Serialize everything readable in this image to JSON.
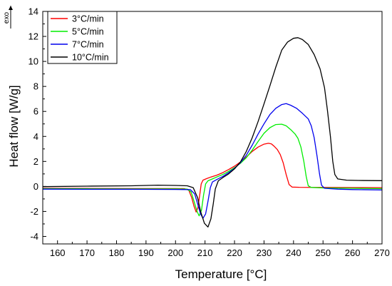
{
  "chart_data": {
    "type": "line",
    "xlabel": "Temperature [°C]",
    "ylabel": "Heat flow [W/g]",
    "exo_label": "exo",
    "xlim": [
      155,
      270
    ],
    "ylim": [
      -4.6,
      14
    ],
    "x_ticks": [
      160,
      170,
      180,
      190,
      200,
      210,
      220,
      230,
      240,
      250,
      260,
      270
    ],
    "y_ticks": [
      -4,
      -2,
      0,
      2,
      4,
      6,
      8,
      10,
      12,
      14
    ],
    "grid": false,
    "legend_position": "top-left",
    "series": [
      {
        "name": "3°C/min",
        "color": "#ff0000",
        "points": [
          [
            155,
            -0.15
          ],
          [
            170,
            -0.16
          ],
          [
            185,
            -0.17
          ],
          [
            200,
            -0.17
          ],
          [
            203,
            -0.18
          ],
          [
            204.5,
            -0.3
          ],
          [
            205.5,
            -0.9
          ],
          [
            206.3,
            -1.6
          ],
          [
            207,
            -2.05
          ],
          [
            207.6,
            -1.7
          ],
          [
            208.2,
            -0.7
          ],
          [
            208.7,
            0.2
          ],
          [
            209.3,
            0.5
          ],
          [
            210.5,
            0.62
          ],
          [
            212,
            0.75
          ],
          [
            214,
            0.9
          ],
          [
            216,
            1.1
          ],
          [
            218,
            1.35
          ],
          [
            220,
            1.62
          ],
          [
            222,
            1.95
          ],
          [
            224,
            2.35
          ],
          [
            226,
            2.8
          ],
          [
            228,
            3.15
          ],
          [
            230,
            3.38
          ],
          [
            231.5,
            3.45
          ],
          [
            232.5,
            3.4
          ],
          [
            233.5,
            3.2
          ],
          [
            234.5,
            2.95
          ],
          [
            235.5,
            2.55
          ],
          [
            236.5,
            1.9
          ],
          [
            237.5,
            0.95
          ],
          [
            238.5,
            0.15
          ],
          [
            239.5,
            -0.05
          ],
          [
            242,
            -0.07
          ],
          [
            250,
            -0.08
          ],
          [
            260,
            -0.09
          ],
          [
            270,
            -0.1
          ]
        ]
      },
      {
        "name": "5°C/min",
        "color": "#00ee00",
        "points": [
          [
            155,
            -0.18
          ],
          [
            170,
            -0.19
          ],
          [
            185,
            -0.2
          ],
          [
            200,
            -0.2
          ],
          [
            204,
            -0.22
          ],
          [
            205.3,
            -0.45
          ],
          [
            206.3,
            -1.2
          ],
          [
            207.3,
            -2.0
          ],
          [
            208,
            -2.35
          ],
          [
            208.8,
            -1.9
          ],
          [
            209.5,
            -0.7
          ],
          [
            210.2,
            0.2
          ],
          [
            211,
            0.45
          ],
          [
            212.5,
            0.6
          ],
          [
            214,
            0.75
          ],
          [
            216,
            0.95
          ],
          [
            218,
            1.2
          ],
          [
            220,
            1.5
          ],
          [
            222,
            1.85
          ],
          [
            224,
            2.3
          ],
          [
            226,
            2.9
          ],
          [
            228,
            3.6
          ],
          [
            230,
            4.25
          ],
          [
            232,
            4.7
          ],
          [
            234,
            4.95
          ],
          [
            236,
            4.98
          ],
          [
            237.5,
            4.85
          ],
          [
            239,
            4.55
          ],
          [
            240.5,
            4.2
          ],
          [
            241.5,
            3.85
          ],
          [
            242.5,
            3.15
          ],
          [
            243.5,
            2.0
          ],
          [
            244.3,
            0.8
          ],
          [
            245,
            0.05
          ],
          [
            246,
            -0.08
          ],
          [
            250,
            -0.12
          ],
          [
            260,
            -0.15
          ],
          [
            270,
            -0.18
          ]
        ]
      },
      {
        "name": "7°C/min",
        "color": "#0000ee",
        "points": [
          [
            155,
            -0.22
          ],
          [
            170,
            -0.23
          ],
          [
            185,
            -0.23
          ],
          [
            200,
            -0.24
          ],
          [
            205,
            -0.26
          ],
          [
            206.5,
            -0.6
          ],
          [
            207.5,
            -1.4
          ],
          [
            208.5,
            -2.2
          ],
          [
            209.3,
            -2.55
          ],
          [
            210.2,
            -2.2
          ],
          [
            211,
            -1.2
          ],
          [
            211.8,
            -0.1
          ],
          [
            212.5,
            0.35
          ],
          [
            214,
            0.55
          ],
          [
            216,
            0.8
          ],
          [
            218,
            1.1
          ],
          [
            220,
            1.45
          ],
          [
            222,
            1.9
          ],
          [
            224,
            2.5
          ],
          [
            226,
            3.3
          ],
          [
            228,
            4.2
          ],
          [
            230,
            5.0
          ],
          [
            232,
            5.75
          ],
          [
            234,
            6.25
          ],
          [
            236,
            6.55
          ],
          [
            237.5,
            6.62
          ],
          [
            239,
            6.5
          ],
          [
            241,
            6.25
          ],
          [
            243,
            5.85
          ],
          [
            245,
            5.4
          ],
          [
            246,
            4.85
          ],
          [
            247,
            3.9
          ],
          [
            248,
            2.4
          ],
          [
            248.8,
            1.0
          ],
          [
            249.5,
            0.1
          ],
          [
            250.5,
            -0.15
          ],
          [
            255,
            -0.22
          ],
          [
            260,
            -0.25
          ],
          [
            270,
            -0.28
          ]
        ]
      },
      {
        "name": "10°C/min",
        "color": "#000000",
        "points": [
          [
            155,
            -0.02
          ],
          [
            170,
            0.02
          ],
          [
            185,
            0.05
          ],
          [
            194,
            0.1
          ],
          [
            200,
            0.08
          ],
          [
            204,
            0.05
          ],
          [
            206,
            -0.1
          ],
          [
            207.5,
            -0.9
          ],
          [
            208.5,
            -2.0
          ],
          [
            209.8,
            -2.95
          ],
          [
            211,
            -3.25
          ],
          [
            212,
            -2.6
          ],
          [
            212.8,
            -1.4
          ],
          [
            213.5,
            -0.2
          ],
          [
            214.5,
            0.45
          ],
          [
            216,
            0.7
          ],
          [
            218,
            1.0
          ],
          [
            220,
            1.4
          ],
          [
            222,
            1.95
          ],
          [
            224,
            2.8
          ],
          [
            226,
            3.9
          ],
          [
            228,
            5.2
          ],
          [
            230,
            6.6
          ],
          [
            232,
            8.05
          ],
          [
            234,
            9.55
          ],
          [
            236,
            10.9
          ],
          [
            238,
            11.55
          ],
          [
            240,
            11.85
          ],
          [
            241.5,
            11.9
          ],
          [
            243,
            11.75
          ],
          [
            245,
            11.35
          ],
          [
            247,
            10.55
          ],
          [
            249,
            9.4
          ],
          [
            250.5,
            7.9
          ],
          [
            251.5,
            6.1
          ],
          [
            252.5,
            4.0
          ],
          [
            253.3,
            2.0
          ],
          [
            254,
            0.95
          ],
          [
            255,
            0.6
          ],
          [
            258,
            0.5
          ],
          [
            262,
            0.48
          ],
          [
            270,
            0.46
          ]
        ]
      }
    ]
  }
}
